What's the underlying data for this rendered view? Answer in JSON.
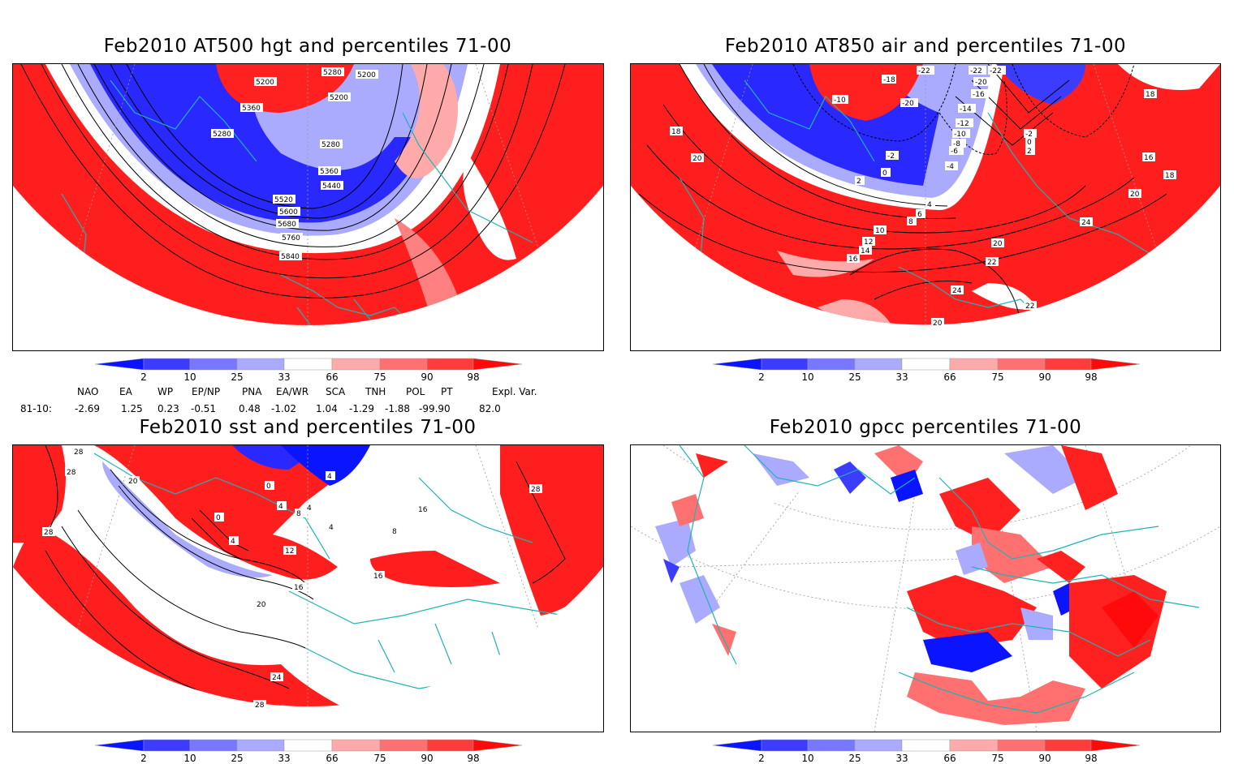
{
  "panels": [
    {
      "title": "Feb2010 AT500 hgt and percentiles 71-00",
      "contour_labels": [
        "5200",
        "5280",
        "5200",
        "5200",
        "5360",
        "5280",
        "5280",
        "5360",
        "5440",
        "5520",
        "5600",
        "5680",
        "5760",
        "5840"
      ]
    },
    {
      "title": "Feb2010 AT850 air and percentiles 71-00",
      "contour_labels": [
        "-18",
        "-22",
        "-22",
        "-22",
        "-20",
        "-10",
        "-20",
        "-16",
        "-14",
        "-12",
        "-10",
        "-8",
        "-6",
        "-2",
        "0",
        "2",
        "-2",
        "0",
        "2",
        "-4",
        "4",
        "6",
        "8",
        "10",
        "12",
        "14",
        "16",
        "18",
        "20",
        "18",
        "16",
        "18",
        "20",
        "24",
        "20",
        "22",
        "24",
        "22",
        "20"
      ]
    },
    {
      "title": "Feb2010 sst and percentiles 71-00",
      "contour_labels": [
        "28",
        "28",
        "28",
        "20",
        "0",
        "0",
        "4",
        "4",
        "8",
        "4",
        "4",
        "12",
        "16",
        "20",
        "24",
        "28",
        "28",
        "16",
        "16",
        "4",
        "8"
      ]
    },
    {
      "title": "Feb2010 gpcc percentiles 71-00",
      "contour_labels": []
    }
  ],
  "colorbar": {
    "ticks": [
      "2",
      "10",
      "25",
      "33",
      "66",
      "75",
      "90",
      "98"
    ],
    "colors": [
      "#0a14ff",
      "#3c3cff",
      "#7878ff",
      "#aaaaff",
      "#ffffff",
      "#ffaaaa",
      "#ff7070",
      "#ff3c3c",
      "#ff0a0a"
    ]
  },
  "indices": {
    "headers": [
      "NAO",
      "EA",
      "WP",
      "EP/NP",
      "PNA",
      "EA/WR",
      "SCA",
      "TNH",
      "POL",
      "PT",
      "Expl. Var."
    ],
    "row_label": "81-10:",
    "values": [
      "-2.69",
      "1.25",
      "0.23",
      "-0.51",
      "0.48",
      "-1.02",
      "1.04",
      "-1.29",
      "-1.88",
      "-99.90",
      "82.0"
    ]
  }
}
